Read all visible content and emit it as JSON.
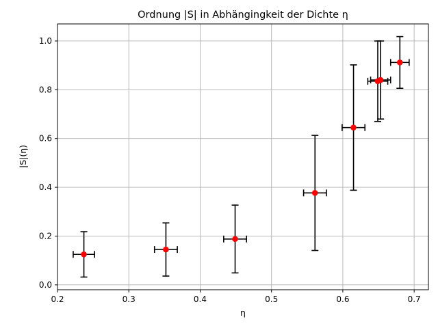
{
  "chart_data": {
    "type": "scatter",
    "title": "Ordnung |S| in Abhängingkeit der Dichte η",
    "xlabel": "η",
    "ylabel": "|S|(η)",
    "xlim": [
      0.2,
      0.72
    ],
    "ylim": [
      -0.02,
      1.07
    ],
    "xticks": [
      0.2,
      0.3,
      0.4,
      0.5,
      0.6,
      0.7
    ],
    "yticks": [
      0.0,
      0.2,
      0.4,
      0.6,
      0.8,
      1.0
    ],
    "xtick_labels": [
      "0.2",
      "0.3",
      "0.4",
      "0.5",
      "0.6",
      "0.7"
    ],
    "ytick_labels": [
      "0.0",
      "0.2",
      "0.4",
      "0.6",
      "0.8",
      "1.0"
    ],
    "grid": true,
    "marker_color": "#ff0000",
    "errorbar_color": "#000000",
    "points": [
      {
        "x": 0.237,
        "y": 0.125,
        "xerr": 0.015,
        "yerr": 0.093
      },
      {
        "x": 0.352,
        "y": 0.145,
        "xerr": 0.016,
        "yerr": 0.109
      },
      {
        "x": 0.449,
        "y": 0.188,
        "xerr": 0.016,
        "yerr": 0.139
      },
      {
        "x": 0.561,
        "y": 0.377,
        "xerr": 0.016,
        "yerr": 0.236
      },
      {
        "x": 0.615,
        "y": 0.645,
        "xerr": 0.016,
        "yerr": 0.257
      },
      {
        "x": 0.649,
        "y": 0.835,
        "xerr": 0.014,
        "yerr": 0.165
      },
      {
        "x": 0.653,
        "y": 0.84,
        "xerr": 0.014,
        "yerr": 0.16
      },
      {
        "x": 0.68,
        "y": 0.912,
        "xerr": 0.013,
        "yerr": 0.106
      }
    ]
  }
}
